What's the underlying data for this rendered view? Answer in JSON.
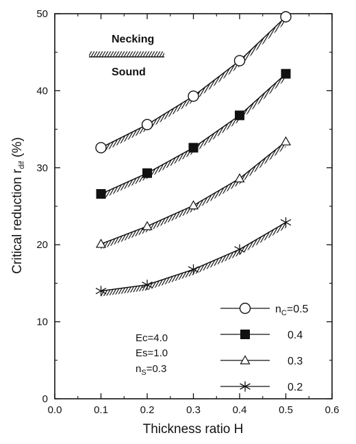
{
  "chart_data": {
    "type": "line",
    "xlabel": "Thickness ratio  H",
    "ylabel_main": "Critical reduction  r",
    "ylabel_sub": "dif",
    "ylabel_unit": " (%)",
    "xlim": [
      0.0,
      0.6
    ],
    "ylim": [
      0,
      50
    ],
    "x_ticks": [
      "0.0",
      "0.1",
      "0.2",
      "0.3",
      "0.4",
      "0.5",
      "0.6"
    ],
    "y_ticks": [
      "0",
      "10",
      "20",
      "30",
      "40",
      "50"
    ],
    "grid": false,
    "x": [
      0.1,
      0.2,
      0.3,
      0.4,
      0.5
    ],
    "series": [
      {
        "legend_label": "n",
        "legend_sub": "C",
        "legend_value": "=0.5",
        "marker": "circle-open",
        "values": [
          32.6,
          35.6,
          39.3,
          43.9,
          49.6
        ]
      },
      {
        "legend_label": "",
        "legend_sub": "",
        "legend_value": "0.4",
        "marker": "square-filled",
        "values": [
          26.6,
          29.3,
          32.6,
          36.8,
          42.2
        ]
      },
      {
        "legend_label": "",
        "legend_sub": "",
        "legend_value": "0.3",
        "marker": "triangle-open",
        "values": [
          20.1,
          22.4,
          25.1,
          28.6,
          33.4
        ]
      },
      {
        "legend_label": "",
        "legend_sub": "",
        "legend_value": "0.2",
        "marker": "asterisk",
        "values": [
          14.0,
          14.8,
          16.8,
          19.4,
          22.9
        ]
      }
    ],
    "annotations": {
      "hatch_top": "Necking",
      "hatch_bottom": "Sound",
      "params": [
        {
          "main": "Ec=4.0",
          "sub": ""
        },
        {
          "main": "Es=1.0",
          "sub": ""
        },
        {
          "main": "n",
          "sub": "S",
          "rest": "=0.3"
        }
      ]
    },
    "legend_position": "bottom-right",
    "colors": {
      "ink": "#111111",
      "background": "#ffffff"
    }
  }
}
